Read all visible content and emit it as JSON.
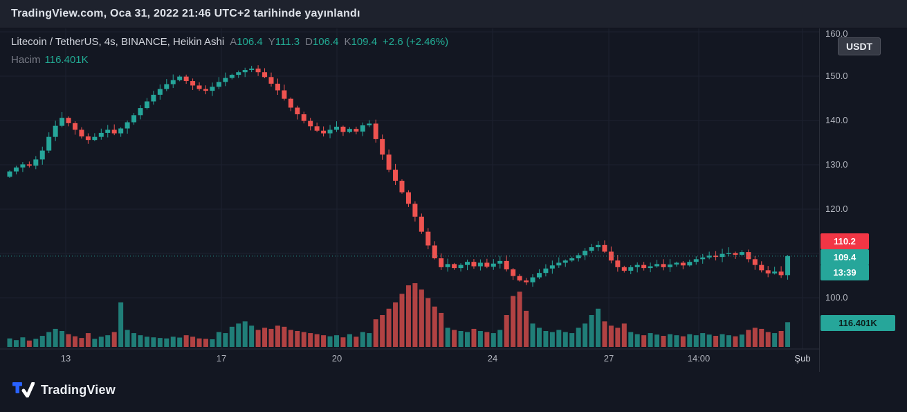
{
  "top_bar": {
    "published_text": "TradingView.com, Oca 31, 2022 21:46 UTC+2 tarihinde yayınlandı"
  },
  "header": {
    "symbol_title": "Litecoin / TetherUS, 4s, BINANCE, Heikin Ashi",
    "ohlc": [
      {
        "label": "A",
        "value": "106.4"
      },
      {
        "label": "Y",
        "value": "111.3"
      },
      {
        "label": "D",
        "value": "106.4"
      },
      {
        "label": "K",
        "value": "109.4"
      }
    ],
    "change": "+2.6 (+2.46%)",
    "volume_label": "Hacim",
    "volume_value": "116.401K"
  },
  "price_scale": {
    "currency_badge": "USDT",
    "labels": [
      {
        "text": "160.0",
        "price": 160
      },
      {
        "text": "150.0",
        "price": 150
      },
      {
        "text": "140.0",
        "price": 140
      },
      {
        "text": "130.0",
        "price": 130
      },
      {
        "text": "120.0",
        "price": 120
      },
      {
        "text": "100.0",
        "price": 100
      }
    ],
    "prev_price_badge": "110.2",
    "last_price_badge": "109.4",
    "countdown_badge": "13:39",
    "volume_badge": "116.401K"
  },
  "footer": {
    "logo_text": "TradingView"
  },
  "colors": {
    "background": "#131722",
    "panel": "#1e222d",
    "up": "#26a69a",
    "down": "#ef5350",
    "grid": "#1c2230",
    "axis_line": "#2a2e39",
    "axis_text": "#b2b5be",
    "axis_text_major": "#d1d4dc",
    "accent_text": "#22ab94",
    "muted_text": "#787b86",
    "badge_red": "#f23645",
    "badge_teal": "#26a69a"
  },
  "chart_data": {
    "type": "candlestick",
    "style": "Heikin Ashi",
    "title": "Litecoin / TetherUS, 4s, BINANCE, Heikin Ashi",
    "interval": "4h",
    "quote_currency": "USDT",
    "last_price": 109.4,
    "prev_label_price": 110.2,
    "ohlc_current": {
      "open": 106.4,
      "high": 111.3,
      "low": 106.4,
      "close": 109.4,
      "change": "+2.6 (+2.46%)"
    },
    "current_volume": "116.401K",
    "y_axis": {
      "visible_min": 97,
      "visible_max": 160.5,
      "gridline_prices": [
        100,
        110,
        120,
        130,
        140,
        150,
        160
      ]
    },
    "x_ticks": [
      {
        "label": "13",
        "x": 95,
        "major": false
      },
      {
        "label": "17",
        "x": 320,
        "major": false
      },
      {
        "label": "20",
        "x": 487,
        "major": false
      },
      {
        "label": "24",
        "x": 712,
        "major": false
      },
      {
        "label": "27",
        "x": 880,
        "major": false
      },
      {
        "label": "14:00",
        "x": 1010,
        "major": false
      },
      {
        "label": "Şub",
        "x": 1160,
        "major": true
      }
    ],
    "closes": [
      128.5,
      129.4,
      130.1,
      129.8,
      131.2,
      133.2,
      136.3,
      138.8,
      140.6,
      139.4,
      137.9,
      136.4,
      135.6,
      136.3,
      137.2,
      137.9,
      137.1,
      138.2,
      139.6,
      141.2,
      142.8,
      144.3,
      145.8,
      147.1,
      148.2,
      149.1,
      149.9,
      148.9,
      147.9,
      147.1,
      146.7,
      147.6,
      148.7,
      149.6,
      150.3,
      150.9,
      151.4,
      151.7,
      150.9,
      149.8,
      148.3,
      146.8,
      144.9,
      142.9,
      141.4,
      139.9,
      138.7,
      137.7,
      137.1,
      137.9,
      138.6,
      137.4,
      138.1,
      137.5,
      138.9,
      139.3,
      135.8,
      132.3,
      128.9,
      126.4,
      123.8,
      121.2,
      118.3,
      114.9,
      111.8,
      108.9,
      106.9,
      107.6,
      106.7,
      107.4,
      108.1,
      107.1,
      107.9,
      107.0,
      107.7,
      108.3,
      106.4,
      104.9,
      103.9,
      103.5,
      104.6,
      105.6,
      106.6,
      107.3,
      107.9,
      108.4,
      108.9,
      109.6,
      110.6,
      111.4,
      111.9,
      110.4,
      108.4,
      106.9,
      106.1,
      106.9,
      107.4,
      106.7,
      107.1,
      107.6,
      106.9,
      107.5,
      107.9,
      107.3,
      108.1,
      108.7,
      109.1,
      109.5,
      109.2,
      109.9,
      110.1,
      109.7,
      110.3,
      108.7,
      107.4,
      106.2,
      105.5,
      105.9,
      105.1,
      109.4
    ],
    "volumes_k": [
      40,
      32,
      45,
      30,
      38,
      52,
      70,
      85,
      75,
      60,
      50,
      42,
      65,
      38,
      48,
      55,
      70,
      210,
      80,
      65,
      55,
      48,
      45,
      42,
      40,
      48,
      44,
      55,
      48,
      40,
      38,
      36,
      70,
      65,
      95,
      110,
      120,
      100,
      80,
      90,
      85,
      100,
      95,
      80,
      75,
      70,
      65,
      60,
      55,
      50,
      55,
      45,
      60,
      48,
      70,
      65,
      130,
      150,
      180,
      210,
      250,
      290,
      300,
      270,
      230,
      190,
      160,
      90,
      80,
      75,
      70,
      85,
      75,
      70,
      65,
      80,
      150,
      240,
      260,
      170,
      110,
      90,
      75,
      70,
      80,
      70,
      65,
      90,
      110,
      150,
      180,
      120,
      100,
      90,
      110,
      70,
      60,
      55,
      65,
      58,
      52,
      60,
      55,
      50,
      60,
      55,
      65,
      58,
      52,
      60,
      55,
      50,
      58,
      80,
      90,
      85,
      70,
      65,
      75,
      116.401
    ]
  }
}
